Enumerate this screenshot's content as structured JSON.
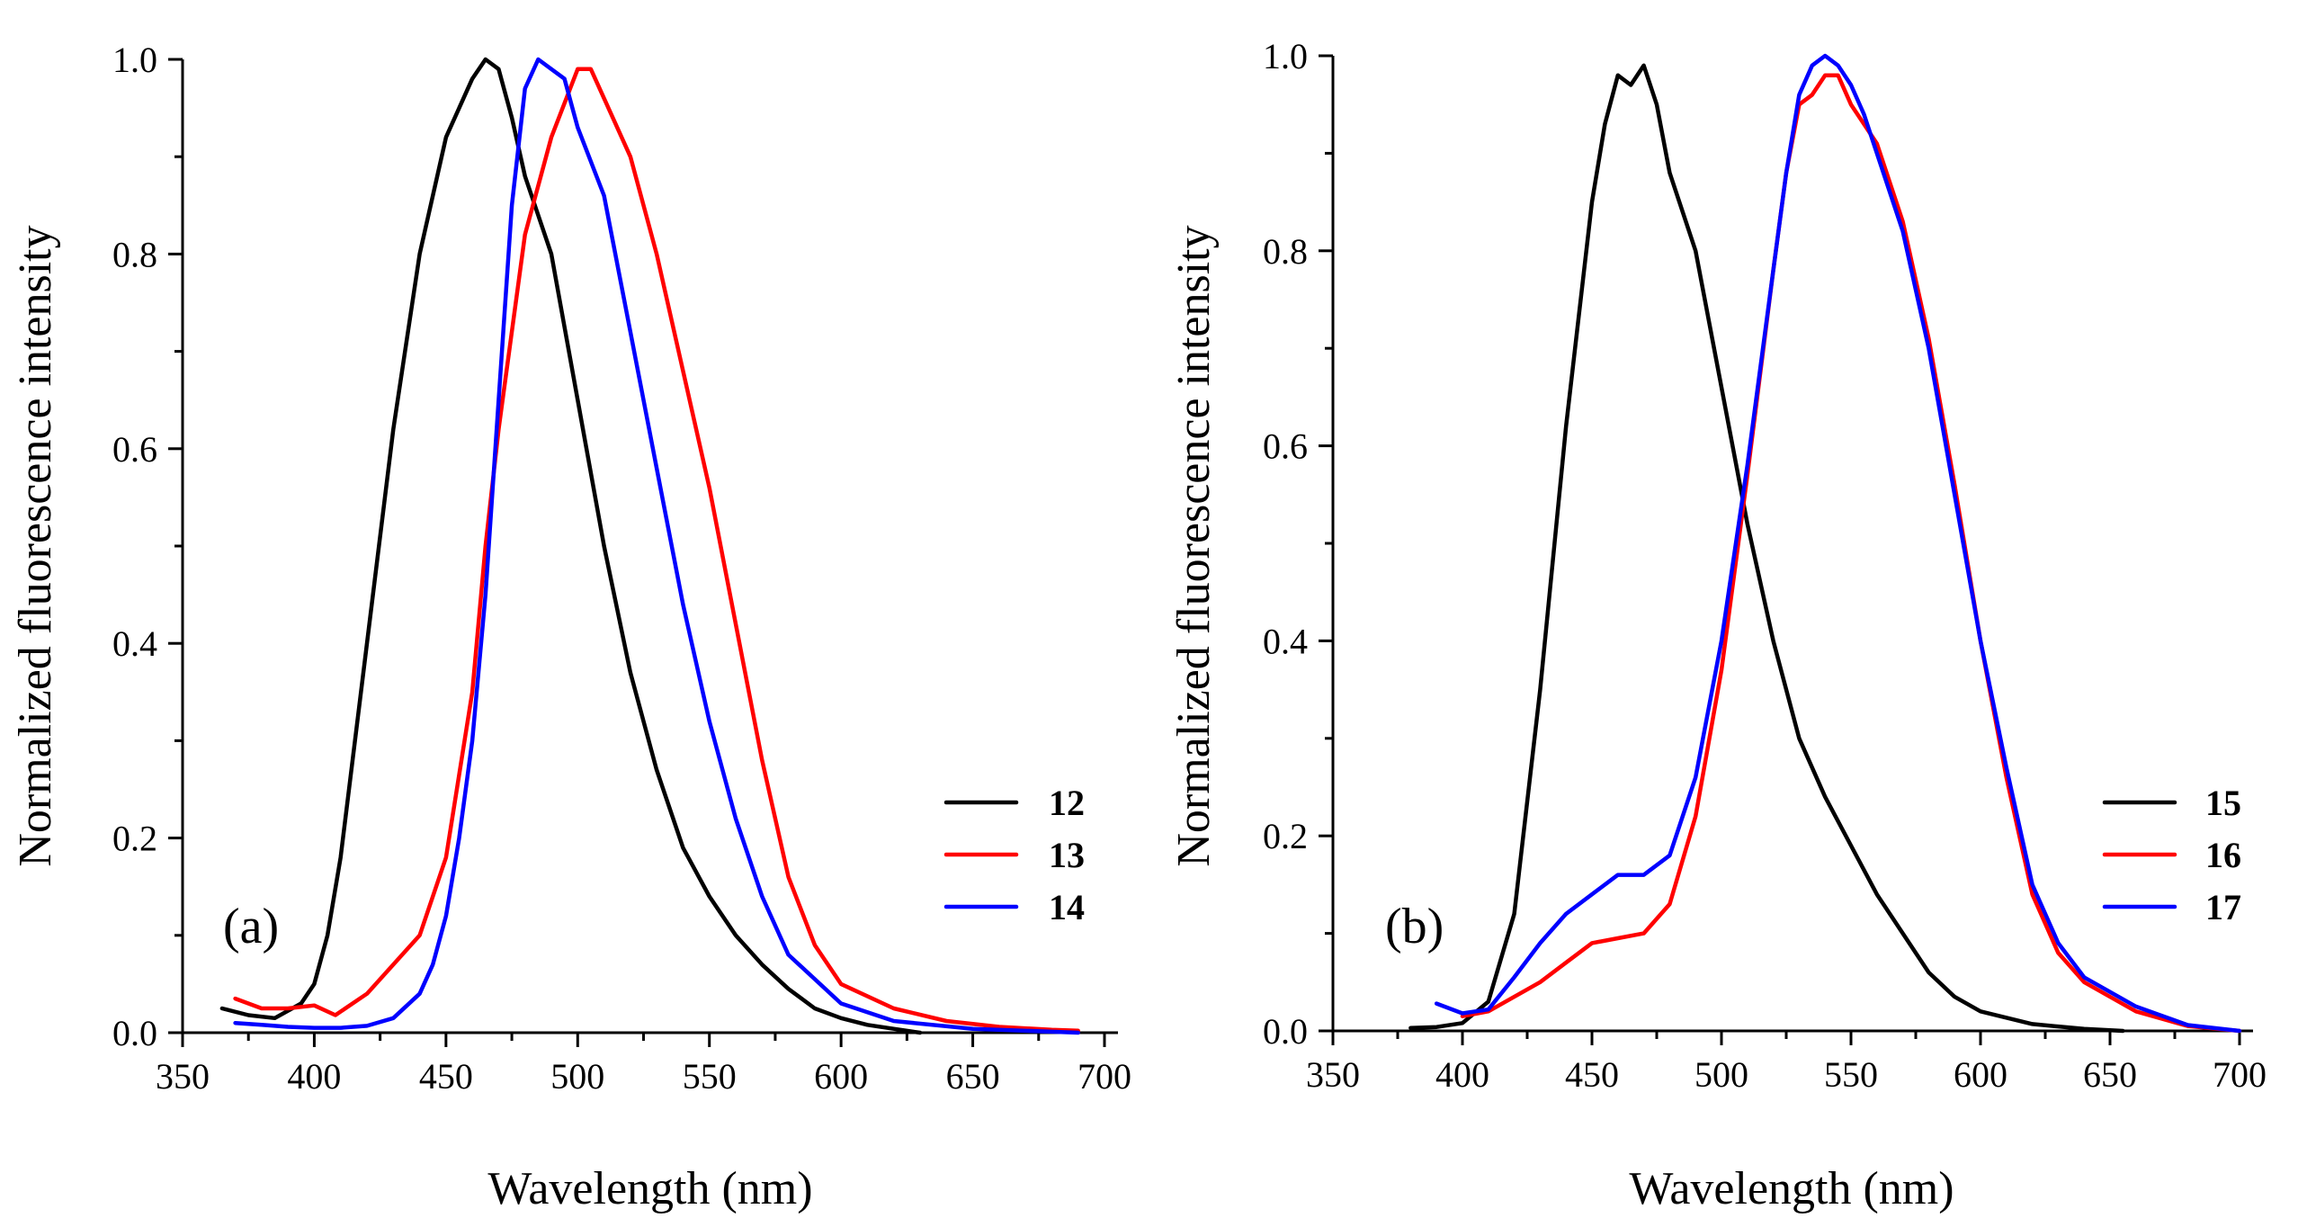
{
  "chart_data": [
    {
      "panel": "(a)",
      "type": "line",
      "xlabel": "Wavelength (nm)",
      "ylabel": "Normalized fluorescence intensity",
      "xlim": [
        350,
        700
      ],
      "ylim": [
        0,
        1.0
      ],
      "xticks": [
        350,
        400,
        450,
        500,
        550,
        600,
        650,
        700
      ],
      "xtick_labels": [
        "350",
        "400",
        "450",
        "500",
        "550",
        "600",
        "650",
        "700"
      ],
      "yticks": [
        0.0,
        0.2,
        0.4,
        0.6,
        0.8,
        1.0
      ],
      "ytick_labels": [
        "0.0",
        "0.2",
        "0.4",
        "0.6",
        "0.8",
        "1.0"
      ],
      "legend_position": "lower-right",
      "series": [
        {
          "name": "12",
          "color": "#000000",
          "x": [
            365,
            375,
            385,
            395,
            400,
            405,
            410,
            420,
            430,
            440,
            450,
            460,
            465,
            470,
            475,
            480,
            490,
            500,
            510,
            520,
            530,
            540,
            550,
            560,
            570,
            580,
            590,
            600,
            610,
            620,
            630
          ],
          "y": [
            0.025,
            0.018,
            0.015,
            0.03,
            0.05,
            0.1,
            0.18,
            0.4,
            0.62,
            0.8,
            0.92,
            0.98,
            1.0,
            0.99,
            0.94,
            0.88,
            0.8,
            0.65,
            0.5,
            0.37,
            0.27,
            0.19,
            0.14,
            0.1,
            0.07,
            0.045,
            0.025,
            0.015,
            0.008,
            0.004,
            0.0
          ]
        },
        {
          "name": "13",
          "color": "#ff0000",
          "x": [
            370,
            380,
            390,
            400,
            408,
            420,
            430,
            440,
            450,
            460,
            465,
            470,
            480,
            490,
            500,
            505,
            510,
            520,
            530,
            540,
            550,
            560,
            570,
            580,
            590,
            600,
            620,
            640,
            660,
            680,
            690
          ],
          "y": [
            0.035,
            0.025,
            0.025,
            0.028,
            0.018,
            0.04,
            0.07,
            0.1,
            0.18,
            0.35,
            0.5,
            0.62,
            0.82,
            0.92,
            0.99,
            0.99,
            0.96,
            0.9,
            0.8,
            0.68,
            0.56,
            0.42,
            0.28,
            0.16,
            0.09,
            0.05,
            0.025,
            0.012,
            0.006,
            0.003,
            0.002
          ]
        },
        {
          "name": "14",
          "color": "#0000ff",
          "x": [
            370,
            380,
            390,
            400,
            410,
            420,
            430,
            440,
            445,
            450,
            455,
            460,
            465,
            470,
            475,
            480,
            485,
            490,
            495,
            500,
            510,
            520,
            530,
            540,
            550,
            560,
            570,
            580,
            600,
            620,
            650,
            680,
            690
          ],
          "y": [
            0.01,
            0.008,
            0.006,
            0.005,
            0.005,
            0.007,
            0.015,
            0.04,
            0.07,
            0.12,
            0.2,
            0.3,
            0.45,
            0.65,
            0.85,
            0.97,
            1.0,
            0.99,
            0.98,
            0.93,
            0.86,
            0.72,
            0.58,
            0.44,
            0.32,
            0.22,
            0.14,
            0.08,
            0.03,
            0.012,
            0.004,
            0.001,
            0.0
          ]
        }
      ]
    },
    {
      "panel": "(b)",
      "type": "line",
      "xlabel": "Wavelength (nm)",
      "ylabel": "Normalized fluorescence intensity",
      "xlim": [
        350,
        700
      ],
      "ylim": [
        0,
        1.0
      ],
      "xticks": [
        350,
        400,
        450,
        500,
        550,
        600,
        650,
        700
      ],
      "xtick_labels": [
        "350",
        "400",
        "450",
        "500",
        "550",
        "600",
        "650",
        "700"
      ],
      "yticks": [
        0.0,
        0.2,
        0.4,
        0.6,
        0.8,
        1.0
      ],
      "ytick_labels": [
        "0.0",
        "0.2",
        "0.4",
        "0.6",
        "0.8",
        "1.0"
      ],
      "legend_position": "lower-right",
      "series": [
        {
          "name": "15",
          "color": "#000000",
          "x": [
            380,
            390,
            400,
            410,
            420,
            430,
            440,
            450,
            455,
            460,
            465,
            470,
            475,
            480,
            490,
            500,
            510,
            520,
            530,
            540,
            550,
            560,
            570,
            580,
            590,
            600,
            620,
            640,
            655
          ],
          "y": [
            0.003,
            0.004,
            0.008,
            0.03,
            0.12,
            0.35,
            0.62,
            0.85,
            0.93,
            0.98,
            0.97,
            0.99,
            0.95,
            0.88,
            0.8,
            0.66,
            0.52,
            0.4,
            0.3,
            0.24,
            0.19,
            0.14,
            0.1,
            0.06,
            0.035,
            0.02,
            0.007,
            0.002,
            0.0
          ]
        },
        {
          "name": "16",
          "color": "#ff0000",
          "x": [
            400,
            410,
            420,
            430,
            440,
            450,
            460,
            470,
            480,
            490,
            500,
            510,
            520,
            525,
            530,
            535,
            540,
            545,
            550,
            555,
            560,
            570,
            580,
            590,
            600,
            610,
            620,
            630,
            640,
            660,
            680,
            700
          ],
          "y": [
            0.015,
            0.02,
            0.035,
            0.05,
            0.07,
            0.09,
            0.095,
            0.1,
            0.13,
            0.22,
            0.37,
            0.57,
            0.78,
            0.88,
            0.95,
            0.96,
            0.98,
            0.98,
            0.95,
            0.93,
            0.91,
            0.83,
            0.71,
            0.56,
            0.4,
            0.26,
            0.14,
            0.08,
            0.05,
            0.02,
            0.005,
            0.0
          ]
        },
        {
          "name": "17",
          "color": "#0000ff",
          "x": [
            390,
            400,
            410,
            420,
            430,
            440,
            450,
            460,
            470,
            480,
            490,
            500,
            510,
            520,
            525,
            530,
            535,
            540,
            545,
            550,
            555,
            560,
            570,
            580,
            590,
            600,
            610,
            620,
            630,
            640,
            660,
            680,
            700
          ],
          "y": [
            0.028,
            0.018,
            0.022,
            0.055,
            0.09,
            0.12,
            0.14,
            0.16,
            0.16,
            0.18,
            0.26,
            0.4,
            0.58,
            0.78,
            0.88,
            0.96,
            0.99,
            1.0,
            0.99,
            0.97,
            0.94,
            0.9,
            0.82,
            0.7,
            0.55,
            0.4,
            0.27,
            0.15,
            0.09,
            0.055,
            0.025,
            0.006,
            0.0
          ]
        }
      ]
    }
  ]
}
